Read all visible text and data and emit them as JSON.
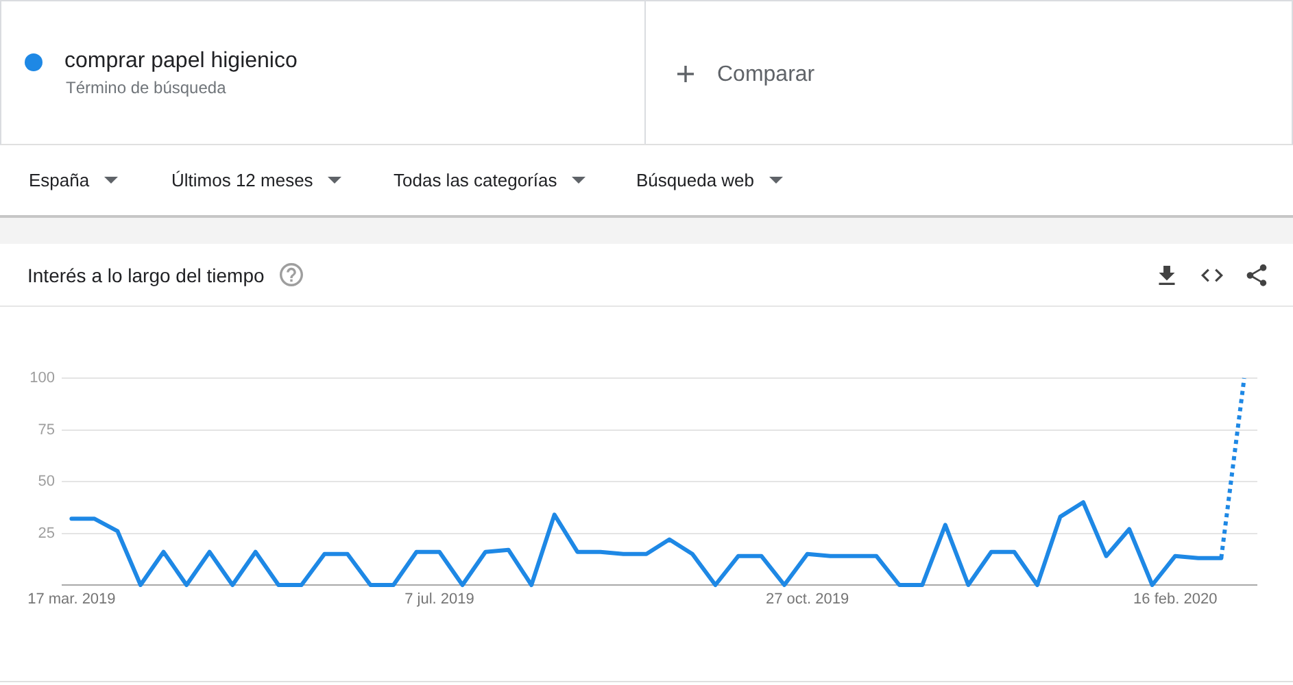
{
  "chart_data": {
    "type": "line",
    "title": "Interés a lo largo del tiempo",
    "annotations": [
      "Término de búsqueda",
      "Comparar",
      "España",
      "Últimos 12 meses",
      "Todas las categorías",
      "Búsqueda web"
    ],
    "x": [
      "2019-03-17",
      "2019-03-24",
      "2019-03-31",
      "2019-04-07",
      "2019-04-14",
      "2019-04-21",
      "2019-04-28",
      "2019-05-05",
      "2019-05-12",
      "2019-05-19",
      "2019-05-26",
      "2019-06-02",
      "2019-06-09",
      "2019-06-16",
      "2019-06-23",
      "2019-06-30",
      "2019-07-07",
      "2019-07-14",
      "2019-07-21",
      "2019-07-28",
      "2019-08-04",
      "2019-08-11",
      "2019-08-18",
      "2019-08-25",
      "2019-09-01",
      "2019-09-08",
      "2019-09-15",
      "2019-09-22",
      "2019-09-29",
      "2019-10-06",
      "2019-10-13",
      "2019-10-20",
      "2019-10-27",
      "2019-11-03",
      "2019-11-10",
      "2019-11-17",
      "2019-11-24",
      "2019-12-01",
      "2019-12-08",
      "2019-12-15",
      "2019-12-22",
      "2019-12-29",
      "2020-01-05",
      "2020-01-12",
      "2020-01-19",
      "2020-01-26",
      "2020-02-02",
      "2020-02-09",
      "2020-02-16",
      "2020-02-23",
      "2020-03-01",
      "2020-03-08"
    ],
    "series": [
      {
        "name": "comprar papel higienico",
        "color": "#1e88e5",
        "values": [
          32,
          32,
          26,
          0,
          16,
          0,
          16,
          0,
          16,
          0,
          0,
          15,
          15,
          0,
          0,
          16,
          16,
          0,
          16,
          17,
          0,
          34,
          16,
          16,
          15,
          15,
          22,
          15,
          0,
          14,
          14,
          0,
          15,
          14,
          14,
          14,
          0,
          0,
          29,
          0,
          16,
          16,
          0,
          33,
          40,
          14,
          27,
          0,
          14,
          13,
          13,
          null
        ]
      },
      {
        "color": "#1e88e5",
        "line_style": "dotted",
        "values": [
          null,
          null,
          null,
          null,
          null,
          null,
          null,
          null,
          null,
          null,
          null,
          null,
          null,
          null,
          null,
          null,
          null,
          null,
          null,
          null,
          null,
          null,
          null,
          null,
          null,
          null,
          null,
          null,
          null,
          null,
          null,
          null,
          null,
          null,
          null,
          null,
          null,
          null,
          null,
          null,
          null,
          null,
          null,
          null,
          null,
          null,
          null,
          null,
          null,
          null,
          13,
          100
        ]
      }
    ],
    "xlim": [
      "2019-03-14",
      "2020-03-12"
    ],
    "xticks": [
      {
        "value": "2019-03-17",
        "label": "17 mar. 2019"
      },
      {
        "value": "2019-07-07",
        "label": "7 jul. 2019"
      },
      {
        "value": "2019-10-27",
        "label": "27 oct. 2019"
      },
      {
        "value": "2020-02-16",
        "label": "16 feb. 2020"
      }
    ],
    "ylim": [
      0,
      100
    ],
    "yticks": [
      {
        "value": 0,
        "label": null
      },
      25,
      50,
      75,
      100
    ],
    "grid": "y",
    "legend": "top left",
    "marker": "none",
    "line_style": "solid"
  }
}
